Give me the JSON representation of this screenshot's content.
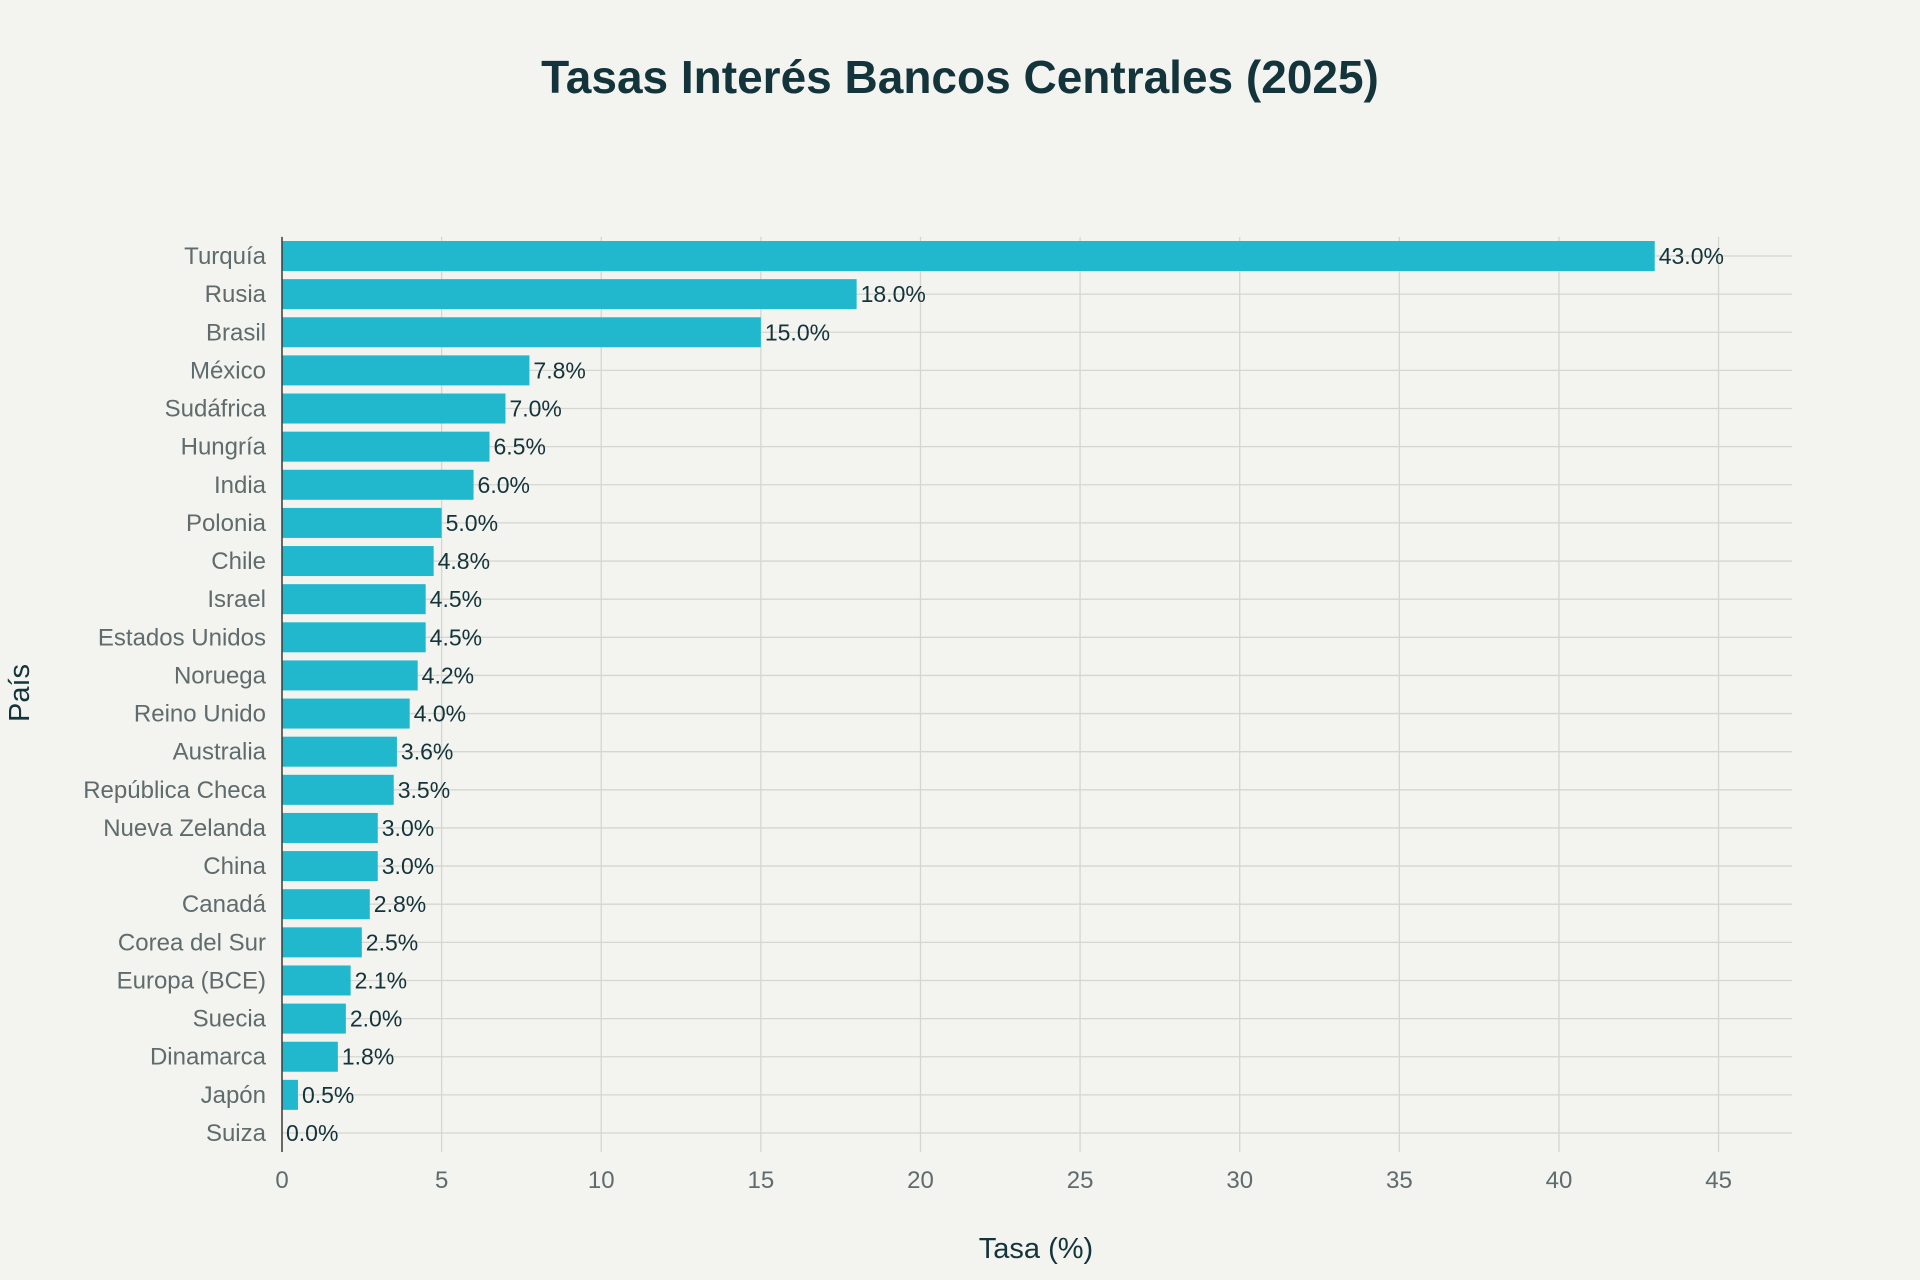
{
  "chart_data": {
    "type": "bar",
    "orientation": "horizontal",
    "title": "Tasas Interés Bancos Centrales (2025)",
    "xlabel": "Tasa (%)",
    "ylabel": "País",
    "xlim": [
      0,
      47.3
    ],
    "x_ticks": [
      "0",
      "5",
      "10",
      "15",
      "20",
      "25",
      "30",
      "35",
      "40",
      "45"
    ],
    "grid": true,
    "bar_color": "#21b8cd",
    "categories": [
      "Turquía",
      "Rusia",
      "Brasil",
      "México",
      "Sudáfrica",
      "Hungría",
      "India",
      "Polonia",
      "Chile",
      "Israel",
      "Estados Unidos",
      "Noruega",
      "Reino Unido",
      "Australia",
      "República Checa",
      "Nueva Zelanda",
      "China",
      "Canadá",
      "Corea del Sur",
      "Europa (BCE)",
      "Suecia",
      "Dinamarca",
      "Japón",
      "Suiza"
    ],
    "values": [
      43.0,
      18.0,
      15.0,
      7.75,
      7.0,
      6.5,
      6.0,
      5.0,
      4.75,
      4.5,
      4.5,
      4.25,
      4.0,
      3.6,
      3.5,
      3.0,
      3.0,
      2.75,
      2.5,
      2.15,
      2.0,
      1.75,
      0.5,
      0.0
    ],
    "data_labels": [
      "43.0%",
      "18.0%",
      "15.0%",
      "7.8%",
      "7.0%",
      "6.5%",
      "6.0%",
      "5.0%",
      "4.8%",
      "4.5%",
      "4.5%",
      "4.2%",
      "4.0%",
      "3.6%",
      "3.5%",
      "3.0%",
      "3.0%",
      "2.8%",
      "2.5%",
      "2.1%",
      "2.0%",
      "1.8%",
      "0.5%",
      "0.0%"
    ]
  }
}
